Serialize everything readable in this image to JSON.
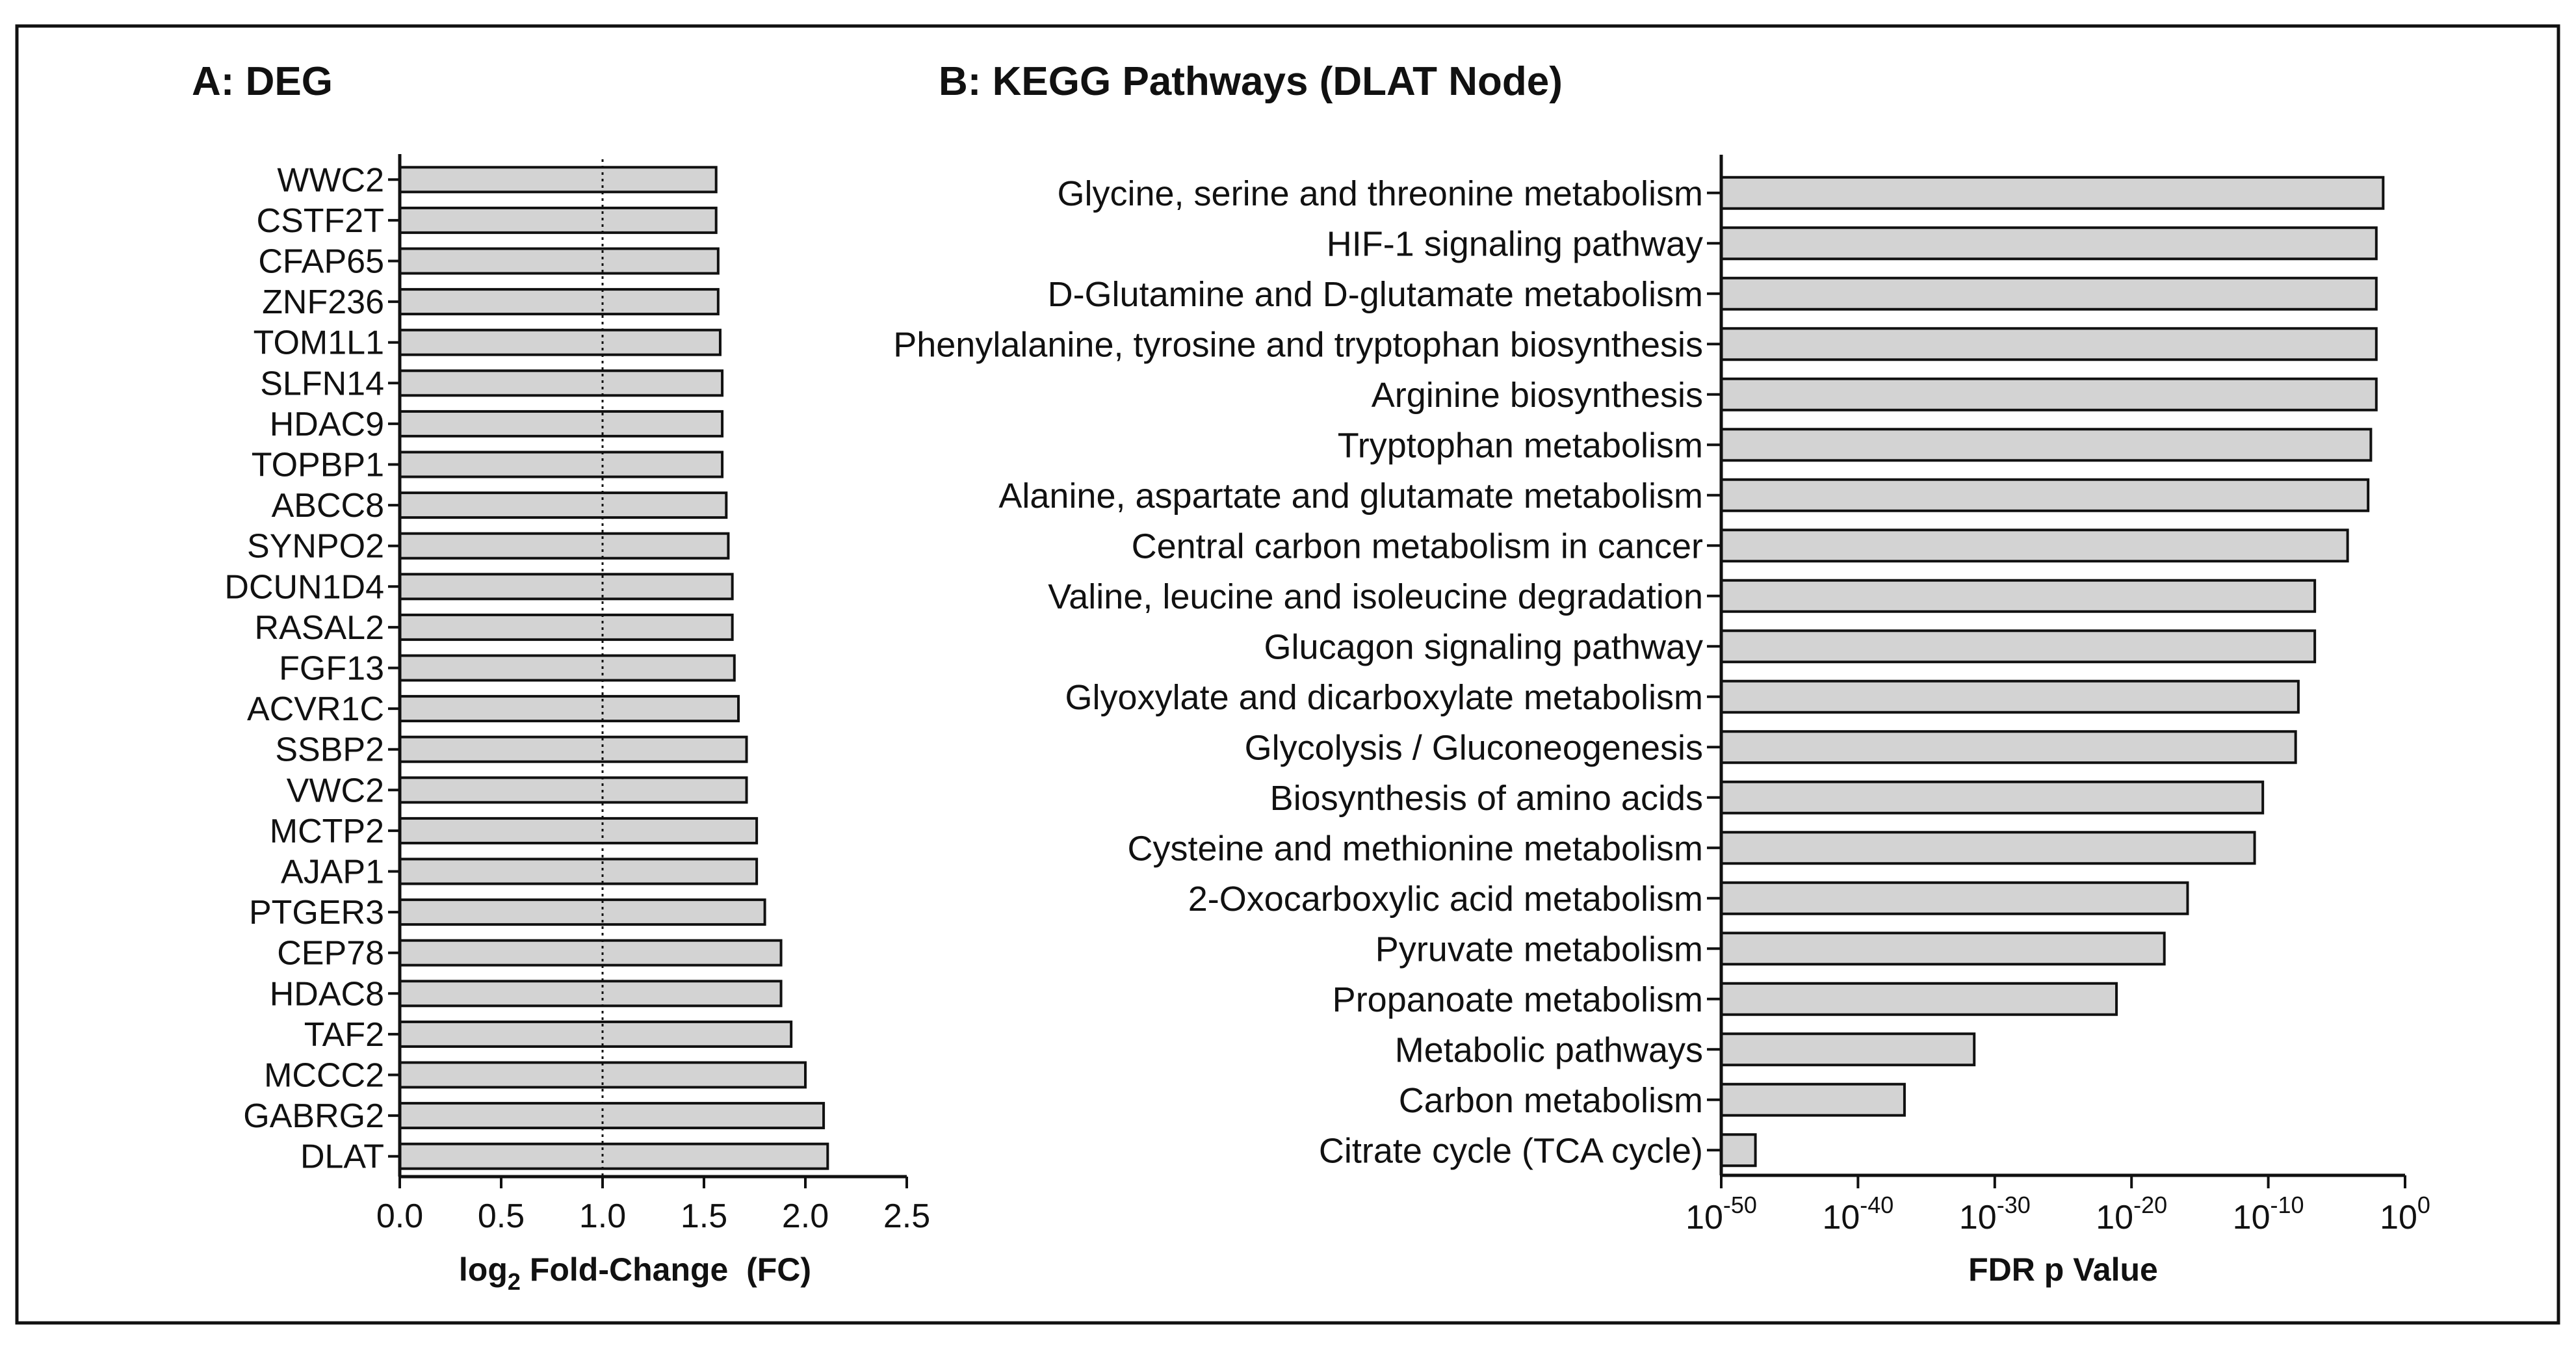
{
  "chart_data": [
    {
      "panel": "A",
      "type": "bar",
      "orientation": "horizontal",
      "title": "A: DEG",
      "xlabel": {
        "main": "log",
        "sub": "2",
        "rest": " Fold-Change  (FC)"
      },
      "xlim": [
        0,
        2.5
      ],
      "xticks": [
        "0.0",
        "0.5",
        "1.0",
        "1.5",
        "2.0",
        "2.5"
      ],
      "xtick_values": [
        0,
        0.5,
        1.0,
        1.5,
        2.0,
        2.5
      ],
      "reference_line": 1.0,
      "categories": [
        "WWC2",
        "CSTF2T",
        "CFAP65",
        "ZNF236",
        "TOM1L1",
        "SLFN14",
        "HDAC9",
        "TOPBP1",
        "ABCC8",
        "SYNPO2",
        "DCUN1D4",
        "RASAL2",
        "FGF13",
        "ACVR1C",
        "SSBP2",
        "VWC2",
        "MCTP2",
        "AJAP1",
        "PTGER3",
        "CEP78",
        "HDAC8",
        "TAF2",
        "MCCC2",
        "GABRG2",
        "DLAT"
      ],
      "values": [
        1.56,
        1.56,
        1.57,
        1.57,
        1.58,
        1.59,
        1.59,
        1.59,
        1.61,
        1.62,
        1.64,
        1.64,
        1.65,
        1.67,
        1.71,
        1.71,
        1.76,
        1.76,
        1.8,
        1.88,
        1.88,
        1.93,
        2.0,
        2.09,
        2.11
      ]
    },
    {
      "panel": "B",
      "type": "bar",
      "orientation": "horizontal",
      "title": "B: KEGG Pathways (DLAT Node)",
      "xlabel": "FDR p Value",
      "xscale": "log10",
      "xlim_exponent": [
        -50,
        0
      ],
      "xticks": [
        {
          "base": "10",
          "exp": "-50"
        },
        {
          "base": "10",
          "exp": "-40"
        },
        {
          "base": "10",
          "exp": "-30"
        },
        {
          "base": "10",
          "exp": "-20"
        },
        {
          "base": "10",
          "exp": "-10"
        },
        {
          "base": "10",
          "exp": "0"
        }
      ],
      "xtick_exponents": [
        -50,
        -40,
        -30,
        -20,
        -10,
        0
      ],
      "categories": [
        "Glycine, serine and threonine metabolism",
        "HIF-1 signaling pathway",
        "D-Glutamine and D-glutamate metabolism",
        "Phenylalanine, tyrosine and tryptophan biosynthesis",
        "Arginine biosynthesis",
        "Tryptophan metabolism",
        "Alanine, aspartate and glutamate metabolism",
        "Central carbon metabolism in cancer",
        "Valine, leucine and isoleucine degradation",
        "Glucagon signaling pathway",
        "Glyoxylate and dicarboxylate metabolism",
        "Glycolysis / Gluconeogenesis",
        "Biosynthesis of amino acids",
        "Cysteine and methionine metabolism",
        "2-Oxocarboxylic acid metabolism",
        "Pyruvate metabolism",
        "Propanoate metabolism",
        "Metabolic pathways",
        "Carbon metabolism",
        "Citrate cycle (TCA cycle)"
      ],
      "log10_fdr": [
        -1.6,
        -2.1,
        -2.1,
        -2.1,
        -2.1,
        -2.5,
        -2.7,
        -4.2,
        -6.6,
        -6.6,
        -7.8,
        -8.0,
        -10.4,
        -11.0,
        -15.9,
        -17.6,
        -21.1,
        -31.5,
        -36.6,
        -47.5
      ]
    }
  ],
  "style": {
    "bar_fill": "#d3d3d3",
    "bar_stroke": "#111111",
    "axis_color": "#111111",
    "frame_color": "#111111"
  }
}
